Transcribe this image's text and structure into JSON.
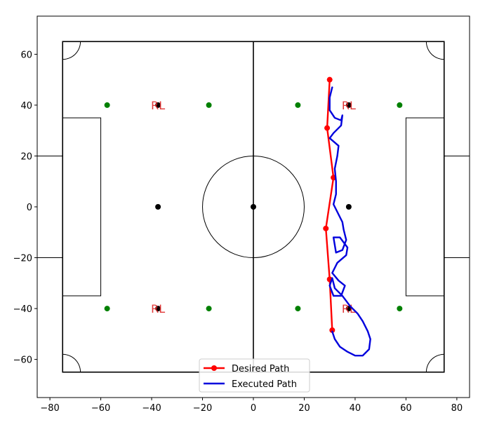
{
  "chart_data": {
    "type": "line",
    "title": "",
    "xlabel": "",
    "ylabel": "",
    "xlim": [
      -85,
      85
    ],
    "ylim": [
      -75,
      75
    ],
    "xticks": [
      -80,
      -60,
      -40,
      -20,
      0,
      20,
      40,
      60,
      80
    ],
    "yticks": [
      -60,
      -40,
      -20,
      0,
      20,
      40,
      60
    ],
    "xtick_labels": [
      "−80",
      "−60",
      "−40",
      "−20",
      "0",
      "20",
      "40",
      "60",
      "80"
    ],
    "ytick_labels": [
      "−60",
      "−40",
      "−20",
      "0",
      "20",
      "40",
      "60"
    ],
    "grid": false,
    "legend": {
      "placement": "bottom-center"
    },
    "field": {
      "half_length": 75,
      "half_width": 65,
      "center_circle_radius": 20,
      "corner_arc_radius": 7,
      "penalty_box": {
        "depth": 15,
        "half_width": 35
      },
      "goal": {
        "depth": 10,
        "half_width": 20
      },
      "penalty_arc": {
        "spot_offset": 37.5,
        "radius": 20
      }
    },
    "markers": {
      "green": {
        "color": "#008000",
        "points": [
          [
            -57.5,
            40
          ],
          [
            -17.5,
            40
          ],
          [
            17.5,
            40
          ],
          [
            57.5,
            40
          ],
          [
            -57.5,
            -40
          ],
          [
            -17.5,
            -40
          ],
          [
            17.5,
            -40
          ],
          [
            57.5,
            -40
          ]
        ]
      },
      "black": {
        "color": "#000000",
        "points": [
          [
            -37.5,
            0
          ],
          [
            0,
            0
          ],
          [
            37.5,
            0
          ],
          [
            -37.5,
            40
          ],
          [
            37.5,
            40
          ],
          [
            -37.5,
            -40
          ],
          [
            37.5,
            -40
          ]
        ]
      }
    },
    "annotations": [
      {
        "text": "RL",
        "x": -37.5,
        "y": 40
      },
      {
        "text": "RL",
        "x": 37.5,
        "y": 40
      },
      {
        "text": "RL",
        "x": -37.5,
        "y": -40
      },
      {
        "text": "RL",
        "x": 37.5,
        "y": -40
      }
    ],
    "series": [
      {
        "name": "Desired Path",
        "color": "#ff0000",
        "marker": "o",
        "x": [
          30,
          29,
          31.5,
          28.5,
          30,
          31
        ],
        "y": [
          50,
          31,
          11.5,
          -8.5,
          -28.5,
          -48.5
        ]
      },
      {
        "name": "Executed Path",
        "color": "#0000dd",
        "marker": "",
        "x": [
          31,
          30,
          30,
          32,
          34.5,
          35,
          34.5,
          31.5,
          30,
          33.5,
          33,
          32,
          32.5,
          32.5,
          31.5,
          34,
          35,
          35.5,
          36.5,
          35,
          32.5,
          31.5,
          34,
          37,
          36.5,
          33,
          31,
          33.5,
          36,
          34.5,
          31.5,
          30,
          31,
          32,
          35,
          38,
          41,
          43,
          45,
          46,
          45.5,
          43,
          40,
          37,
          34,
          32,
          31
        ],
        "y": [
          47,
          43,
          38,
          35,
          34,
          36,
          32,
          29,
          27,
          24,
          20,
          15,
          10,
          5,
          1,
          -4,
          -6,
          -9,
          -13,
          -17,
          -18,
          -12,
          -12,
          -16,
          -19,
          -22,
          -26,
          -29,
          -31,
          -35,
          -35,
          -31,
          -28,
          -32,
          -35,
          -39,
          -42,
          -45,
          -49,
          -52,
          -56,
          -58.5,
          -58.5,
          -57,
          -55,
          -52,
          -49
        ]
      }
    ]
  }
}
